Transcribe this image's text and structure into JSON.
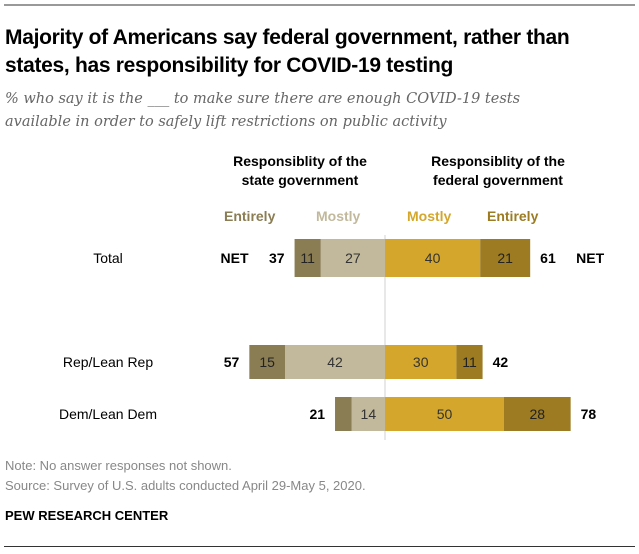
{
  "title": "Majority of Americans say federal government, rather than states, has responsibility for COVID-19 testing",
  "subtitle_line1": "% who say it is the ___ to make sure there are enough COVID-19 tests",
  "subtitle_line2": "available in order to safely lift restrictions on public activity",
  "headers": {
    "state": [
      "Responsiblity of the",
      "state government"
    ],
    "federal": [
      "Responsiblity of the",
      "federal government"
    ]
  },
  "legend": [
    {
      "label": "Entirely",
      "color": "#8b7d53"
    },
    {
      "label": "Mostly",
      "color": "#c2b99c"
    },
    {
      "label": "Mostly",
      "color": "#d4a72c"
    },
    {
      "label": "Entirely",
      "color": "#9c7b22"
    }
  ],
  "net_label": "NET",
  "note": "Note: No answer responses not shown.",
  "source": "Source: Survey of U.S. adults conducted April 29-May 5, 2020.",
  "brand": "PEW RESEARCH CENTER",
  "chart_data": {
    "type": "bar",
    "orientation": "horizontal-diverging",
    "categories": [
      "Total",
      "Rep/Lean Rep",
      "Dem/Lean Dem"
    ],
    "series": [
      {
        "name": "State - Entirely",
        "side": "state",
        "color": "#8b7d53",
        "values": [
          11,
          15,
          7
        ],
        "labels_shown": [
          true,
          true,
          false
        ]
      },
      {
        "name": "State - Mostly",
        "side": "state",
        "color": "#c2b99c",
        "values": [
          27,
          42,
          14
        ],
        "labels_shown": [
          true,
          true,
          true
        ]
      },
      {
        "name": "Federal - Mostly",
        "side": "federal",
        "color": "#d4a72c",
        "values": [
          40,
          30,
          50
        ],
        "labels_shown": [
          true,
          true,
          true
        ]
      },
      {
        "name": "Federal - Entirely",
        "side": "federal",
        "color": "#9c7b22",
        "values": [
          21,
          11,
          28
        ],
        "labels_shown": [
          true,
          true,
          true
        ]
      }
    ],
    "net_state": [
      37,
      57,
      21
    ],
    "net_federal": [
      61,
      42,
      78
    ],
    "title": "Majority of Americans say federal government, rather than states, has responsibility for COVID-19 testing",
    "xlabel": "",
    "ylabel": "",
    "grid": false,
    "legend_position": "top"
  }
}
